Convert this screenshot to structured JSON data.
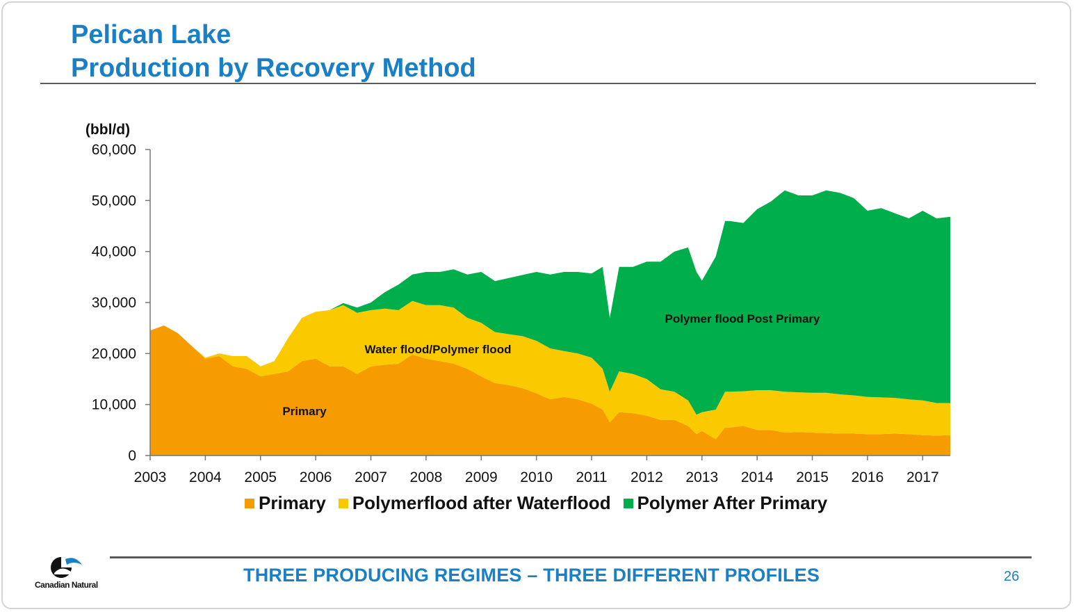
{
  "slide": {
    "title_line1": "Pelican Lake",
    "title_line2": "Production by Recovery Method",
    "footer": "THREE PRODUCING REGIMES – THREE DIFFERENT PROFILES",
    "page_number": "26",
    "logo_text": "Canadian Natural"
  },
  "chart_data": {
    "type": "area",
    "stacked": true,
    "unit_label": "(bbl/d)",
    "ylim": [
      0,
      60000
    ],
    "yticks": [
      0,
      10000,
      20000,
      30000,
      40000,
      50000,
      60000
    ],
    "ytick_labels": [
      "0",
      "10,000",
      "20,000",
      "30,000",
      "40,000",
      "50,000",
      "60,000"
    ],
    "xlim": [
      2003,
      2017.5
    ],
    "xticks": [
      2003,
      2004,
      2005,
      2006,
      2007,
      2008,
      2009,
      2010,
      2011,
      2012,
      2013,
      2014,
      2015,
      2016,
      2017
    ],
    "xtick_labels": [
      "2003",
      "2004",
      "2005",
      "2006",
      "2007",
      "2008",
      "2009",
      "2010",
      "2011",
      "2012",
      "2013",
      "2014",
      "2015",
      "2016",
      "2017"
    ],
    "x": [
      2003.0,
      2003.25,
      2003.5,
      2003.75,
      2004.0,
      2004.25,
      2004.5,
      2004.75,
      2005.0,
      2005.25,
      2005.5,
      2005.75,
      2006.0,
      2006.25,
      2006.5,
      2006.75,
      2007.0,
      2007.25,
      2007.5,
      2007.75,
      2008.0,
      2008.25,
      2008.5,
      2008.75,
      2009.0,
      2009.25,
      2009.5,
      2009.75,
      2010.0,
      2010.25,
      2010.5,
      2010.75,
      2011.0,
      2011.2,
      2011.33,
      2011.5,
      2011.75,
      2012.0,
      2012.25,
      2012.5,
      2012.75,
      2012.9,
      2013.0,
      2013.25,
      2013.42,
      2013.5,
      2013.75,
      2014.0,
      2014.25,
      2014.5,
      2014.75,
      2015.0,
      2015.25,
      2015.5,
      2015.75,
      2016.0,
      2016.25,
      2016.5,
      2016.75,
      2017.0,
      2017.25,
      2017.5
    ],
    "series": [
      {
        "name": "Primary",
        "color": "#f79c00",
        "values": [
          24500,
          25500,
          24000,
          21500,
          19000,
          19500,
          17500,
          17000,
          15500,
          16000,
          16500,
          18500,
          19000,
          17500,
          17500,
          16000,
          17500,
          17800,
          18000,
          19800,
          19000,
          18500,
          18000,
          17000,
          15500,
          14200,
          13800,
          13200,
          12200,
          11000,
          11500,
          11000,
          10200,
          9000,
          6500,
          8500,
          8300,
          7800,
          7000,
          7000,
          5800,
          4200,
          4800,
          3200,
          5500,
          5500,
          5800,
          5000,
          5000,
          4500,
          4600,
          4500,
          4400,
          4300,
          4300,
          4200,
          4200,
          4300,
          4200,
          4000,
          3900,
          4000
        ]
      },
      {
        "name": "Polymerflood after Waterflood",
        "color": "#fbc900",
        "values": [
          0,
          0,
          0,
          0,
          200,
          500,
          2000,
          2500,
          2000,
          2500,
          6500,
          8500,
          9200,
          11000,
          12000,
          12000,
          11000,
          11000,
          10500,
          10500,
          10500,
          11000,
          11000,
          10000,
          10500,
          10000,
          10000,
          10200,
          10300,
          10000,
          9000,
          9000,
          9000,
          8000,
          6000,
          8000,
          7700,
          7200,
          6000,
          5500,
          5000,
          3800,
          3700,
          5800,
          7000,
          7000,
          6800,
          7800,
          7800,
          8000,
          7800,
          7800,
          7900,
          7700,
          7500,
          7300,
          7200,
          7000,
          6800,
          6800,
          6400,
          6300
        ]
      },
      {
        "name": "Polymer After Primary",
        "color": "#00ae4b",
        "values": [
          0,
          0,
          0,
          0,
          0,
          0,
          0,
          0,
          0,
          0,
          0,
          0,
          0,
          0,
          400,
          1000,
          1500,
          3200,
          5000,
          5200,
          6500,
          6500,
          7500,
          8500,
          10000,
          10000,
          11000,
          12000,
          13500,
          14500,
          15500,
          16000,
          16500,
          20000,
          14500,
          20500,
          21000,
          23000,
          25000,
          27500,
          30000,
          28000,
          25800,
          30000,
          33500,
          33500,
          33000,
          35500,
          37000,
          39500,
          38600,
          38700,
          39700,
          39500,
          38700,
          36500,
          37100,
          36200,
          35500,
          37200,
          36200,
          36500
        ]
      }
    ],
    "area_labels": [
      "Primary",
      "Water flood/Polymer flood",
      "Polymer flood Post Primary"
    ],
    "legend_position": "bottom",
    "grid": false
  }
}
